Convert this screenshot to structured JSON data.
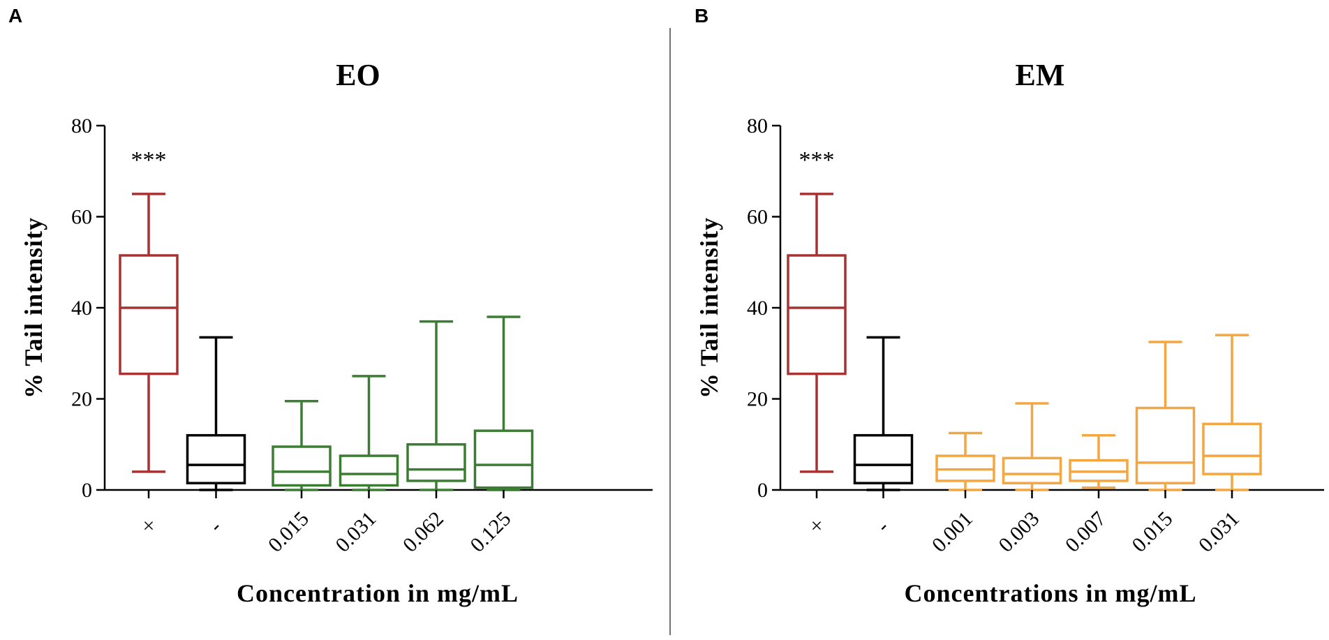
{
  "chart_data": [
    {
      "type": "box",
      "panel_label": "A",
      "title": "EO",
      "ylabel": "% Tail intensity",
      "xlabel": "Concentration in mg/mL",
      "ylim": [
        0,
        80
      ],
      "yticks": [
        0,
        20,
        40,
        60,
        80
      ],
      "categories": [
        "×",
        "-",
        "0.015",
        "0.031",
        "0.062",
        "0.125"
      ],
      "colors": [
        "#a83232",
        "#000000",
        "#3b7d33",
        "#3b7d33",
        "#3b7d33",
        "#3b7d33"
      ],
      "significance": [
        "***",
        "",
        "",
        "",
        "",
        ""
      ],
      "boxes": [
        {
          "min": 4,
          "q1": 25.5,
          "median": 40,
          "q3": 51.5,
          "max": 65
        },
        {
          "min": 0,
          "q1": 1.5,
          "median": 5.5,
          "q3": 12,
          "max": 33.5
        },
        {
          "min": 0,
          "q1": 1,
          "median": 4,
          "q3": 9.5,
          "max": 19.5
        },
        {
          "min": 0,
          "q1": 1,
          "median": 3.5,
          "q3": 7.5,
          "max": 25
        },
        {
          "min": 0,
          "q1": 2,
          "median": 4.5,
          "q3": 10,
          "max": 37
        },
        {
          "min": 0,
          "q1": 0.5,
          "median": 5.5,
          "q3": 13,
          "max": 38
        }
      ]
    },
    {
      "type": "box",
      "panel_label": "B",
      "title": "EM",
      "ylabel": "% Tail intensity",
      "xlabel": "Concentrations in mg/mL",
      "ylim": [
        0,
        80
      ],
      "yticks": [
        0,
        20,
        40,
        60,
        80
      ],
      "categories": [
        "×",
        "-",
        "0.001",
        "0.003",
        "0.007",
        "0.015",
        "0.031"
      ],
      "colors": [
        "#a83232",
        "#000000",
        "#f4a640",
        "#f4a640",
        "#f4a640",
        "#f4a640",
        "#f4a640"
      ],
      "significance": [
        "***",
        "",
        "",
        "",
        "",
        "",
        ""
      ],
      "boxes": [
        {
          "min": 4,
          "q1": 25.5,
          "median": 40,
          "q3": 51.5,
          "max": 65
        },
        {
          "min": 0,
          "q1": 1.5,
          "median": 5.5,
          "q3": 12,
          "max": 33.5
        },
        {
          "min": 0,
          "q1": 2,
          "median": 4.5,
          "q3": 7.5,
          "max": 12.5
        },
        {
          "min": 0,
          "q1": 1.5,
          "median": 3.5,
          "q3": 7,
          "max": 19
        },
        {
          "min": 0.5,
          "q1": 2,
          "median": 4,
          "q3": 6.5,
          "max": 12
        },
        {
          "min": 0,
          "q1": 1.5,
          "median": 6,
          "q3": 18,
          "max": 32.5
        },
        {
          "min": 0,
          "q1": 3.5,
          "median": 7.5,
          "q3": 14.5,
          "max": 34
        }
      ]
    }
  ]
}
